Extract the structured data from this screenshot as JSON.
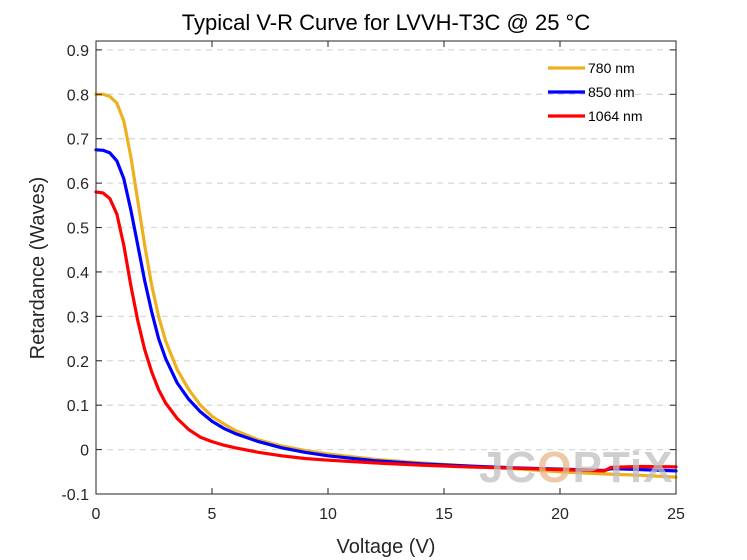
{
  "chart_data": {
    "type": "line",
    "title": "Typical V-R Curve for LVVH-T3C @ 25 °C",
    "xlabel": "Voltage (V)",
    "ylabel": "Retardance (Waves)",
    "xlim": [
      0,
      25
    ],
    "ylim": [
      -0.1,
      0.92
    ],
    "xticks": [
      0,
      5,
      10,
      15,
      20,
      25
    ],
    "yticks": [
      -0.1,
      0,
      0.1,
      0.2,
      0.3,
      0.4,
      0.5,
      0.6,
      0.7,
      0.8,
      0.9
    ],
    "ytick_labels": [
      "-0.1",
      "0",
      "0.1",
      "0.2",
      "0.3",
      "0.4",
      "0.5",
      "0.6",
      "0.7",
      "0.8",
      "0.9"
    ],
    "grid": "horizontal dashed",
    "legend_position": "top-right",
    "series": [
      {
        "name": "780 nm",
        "color": "#EDB120",
        "points": [
          [
            0,
            0.8
          ],
          [
            0.3,
            0.8
          ],
          [
            0.6,
            0.795
          ],
          [
            0.9,
            0.78
          ],
          [
            1.2,
            0.74
          ],
          [
            1.5,
            0.66
          ],
          [
            1.8,
            0.56
          ],
          [
            2.1,
            0.46
          ],
          [
            2.4,
            0.37
          ],
          [
            2.7,
            0.3
          ],
          [
            3.0,
            0.245
          ],
          [
            3.5,
            0.18
          ],
          [
            4.0,
            0.135
          ],
          [
            4.5,
            0.1
          ],
          [
            5.0,
            0.075
          ],
          [
            5.5,
            0.058
          ],
          [
            6.0,
            0.043
          ],
          [
            7.0,
            0.022
          ],
          [
            8.0,
            0.008
          ],
          [
            9.0,
            -0.002
          ],
          [
            10.0,
            -0.01
          ],
          [
            12.0,
            -0.022
          ],
          [
            14.0,
            -0.03
          ],
          [
            16.0,
            -0.037
          ],
          [
            18.0,
            -0.043
          ],
          [
            20.0,
            -0.05
          ],
          [
            22.0,
            -0.055
          ],
          [
            23.5,
            -0.058
          ],
          [
            25.0,
            -0.062
          ]
        ]
      },
      {
        "name": "850 nm",
        "color": "#0000FF",
        "points": [
          [
            0,
            0.675
          ],
          [
            0.3,
            0.674
          ],
          [
            0.6,
            0.668
          ],
          [
            0.9,
            0.65
          ],
          [
            1.2,
            0.61
          ],
          [
            1.5,
            0.54
          ],
          [
            1.8,
            0.46
          ],
          [
            2.1,
            0.38
          ],
          [
            2.4,
            0.31
          ],
          [
            2.7,
            0.25
          ],
          [
            3.0,
            0.205
          ],
          [
            3.5,
            0.15
          ],
          [
            4.0,
            0.113
          ],
          [
            4.5,
            0.085
          ],
          [
            5.0,
            0.064
          ],
          [
            5.5,
            0.048
          ],
          [
            6.0,
            0.036
          ],
          [
            7.0,
            0.018
          ],
          [
            8.0,
            0.004
          ],
          [
            9.0,
            -0.006
          ],
          [
            10.0,
            -0.014
          ],
          [
            12.0,
            -0.025
          ],
          [
            14.0,
            -0.032
          ],
          [
            16.0,
            -0.037
          ],
          [
            18.0,
            -0.041
          ],
          [
            20.0,
            -0.044
          ],
          [
            21.9,
            -0.047
          ],
          [
            22.2,
            -0.043
          ],
          [
            23.5,
            -0.045
          ],
          [
            25.0,
            -0.048
          ]
        ]
      },
      {
        "name": "1064 nm",
        "color": "#FF0000",
        "points": [
          [
            0,
            0.58
          ],
          [
            0.3,
            0.578
          ],
          [
            0.6,
            0.565
          ],
          [
            0.9,
            0.53
          ],
          [
            1.2,
            0.46
          ],
          [
            1.5,
            0.37
          ],
          [
            1.8,
            0.29
          ],
          [
            2.1,
            0.225
          ],
          [
            2.4,
            0.175
          ],
          [
            2.7,
            0.135
          ],
          [
            3.0,
            0.105
          ],
          [
            3.5,
            0.07
          ],
          [
            4.0,
            0.045
          ],
          [
            4.5,
            0.028
          ],
          [
            5.0,
            0.018
          ],
          [
            5.5,
            0.01
          ],
          [
            6.0,
            0.004
          ],
          [
            7.0,
            -0.006
          ],
          [
            8.0,
            -0.014
          ],
          [
            9.0,
            -0.02
          ],
          [
            10.0,
            -0.024
          ],
          [
            12.0,
            -0.03
          ],
          [
            14.0,
            -0.035
          ],
          [
            16.0,
            -0.039
          ],
          [
            18.0,
            -0.042
          ],
          [
            20.0,
            -0.045
          ],
          [
            21.9,
            -0.048
          ],
          [
            22.2,
            -0.04
          ],
          [
            23.5,
            -0.038
          ],
          [
            25.0,
            -0.039
          ]
        ]
      }
    ]
  },
  "watermark": {
    "parts": [
      "JC",
      "O",
      "PTiX"
    ],
    "accent_color": "#e8b98a"
  }
}
